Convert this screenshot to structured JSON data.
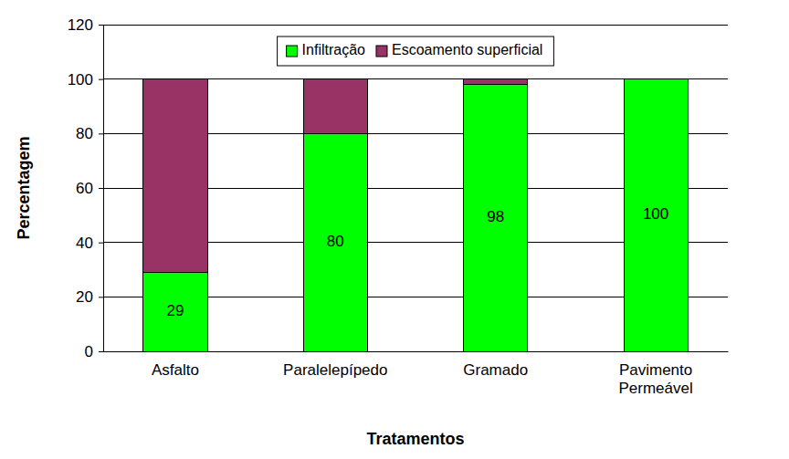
{
  "chart_data": {
    "type": "bar",
    "stacked": true,
    "categories": [
      "Asfalto",
      "Paralelepípedo",
      "Gramado",
      "Pavimento Permeável"
    ],
    "series": [
      {
        "name": "Infiltração",
        "color": "#00ff00",
        "values": [
          29,
          80,
          98,
          100
        ],
        "data_labels": true
      },
      {
        "name": "Escoamento superficial",
        "color": "#993366",
        "values": [
          71,
          20,
          2,
          0
        ]
      }
    ],
    "x_label": "Tratamentos",
    "y_label": "Percentagem",
    "ylim": [
      0,
      120
    ],
    "yticks": [
      0,
      20,
      40,
      60,
      80,
      100,
      120
    ],
    "grid": true,
    "legend": "top"
  }
}
